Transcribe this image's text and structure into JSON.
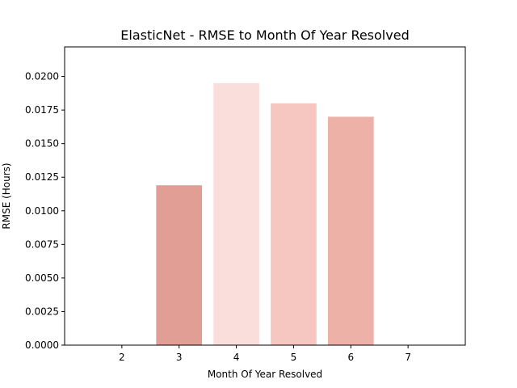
{
  "chart_data": {
    "type": "bar",
    "title": "ElasticNet - RMSE to Month Of Year Resolved",
    "xlabel": "Month Of Year Resolved",
    "ylabel": "RMSE (Hours)",
    "x": [
      3,
      4,
      5,
      6
    ],
    "values": [
      0.0119,
      0.0195,
      0.018,
      0.017
    ],
    "colors": [
      "#e19e94",
      "#fadedb",
      "#f6c7c0",
      "#eeb1a8"
    ],
    "xticks": [
      "2",
      "3",
      "4",
      "5",
      "6",
      "7"
    ],
    "xtick_values": [
      2,
      3,
      4,
      5,
      6,
      7
    ],
    "yticks": [
      "0.0000",
      "0.0025",
      "0.0050",
      "0.0075",
      "0.0100",
      "0.0125",
      "0.0150",
      "0.0175",
      "0.0200"
    ],
    "ytick_values": [
      0,
      0.0025,
      0.005,
      0.0075,
      0.01,
      0.0125,
      0.015,
      0.0175,
      0.02
    ],
    "xlim": [
      1.0,
      8.0
    ],
    "ylim": [
      0,
      0.0222
    ],
    "bar_width": 0.8,
    "grid": false,
    "legend": "none"
  }
}
